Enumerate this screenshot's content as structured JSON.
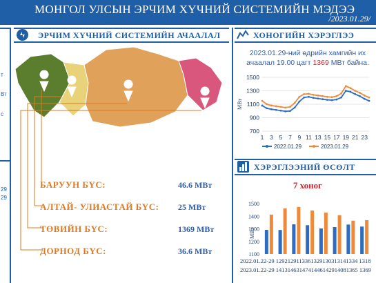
{
  "header": {
    "title": "МОНГОЛ УЛСЫН ЭРЧИМ ХҮЧНИЙ СИСТЕМИЙН МЭДЭЭ",
    "date": "/2023.01.29/"
  },
  "sections": {
    "system_status": "ЭРЧИМ ХҮЧНИЙ СИСТЕМИЙН АЧААЛАЛ",
    "daily_consumption": "ХОНОГИЙН ХЭРЭГЛЭЭ",
    "consumption_growth": "ХЭРЭГЛЭЭНИЙ ӨСӨЛТ"
  },
  "left_fragments": [
    "т",
    "Вт",
    "с",
    "29",
    "29"
  ],
  "regions": [
    {
      "name": "БАРУУН БҮС:",
      "value": "46.6 МВт",
      "color": "#5a7d2e"
    },
    {
      "name": "АЛТАЙ- УЛИАСТАЙ БҮС:",
      "value": "25 МВт",
      "color": "#e8d27a"
    },
    {
      "name": "ТӨВИЙН БҮС:",
      "value": "1369 МВт",
      "color": "#e0a25a"
    },
    {
      "name": "ДОРНОД БҮС:",
      "value": "36.6 МВт",
      "color": "#d9567d"
    }
  ],
  "daily_caption": {
    "line1": "2023.01.29-ний өдрийн хамгийн их",
    "line2_pre": "ачаалал 19.00 цагт ",
    "line2_value": "1369",
    "line2_post": " МВт байна."
  },
  "week_title": "7 хоног",
  "chart_data": [
    {
      "type": "line",
      "ylabel": "МВт",
      "ylim": [
        700,
        1500
      ],
      "yticks": [
        700,
        900,
        1100,
        1300,
        1500
      ],
      "x": [
        1,
        2,
        3,
        4,
        5,
        6,
        7,
        8,
        9,
        10,
        11,
        12,
        13,
        14,
        15,
        16,
        17,
        18,
        19,
        20,
        21,
        22,
        23,
        24
      ],
      "xticks": [
        "1",
        "3",
        "5",
        "7",
        "9",
        "11",
        "13",
        "15",
        "17",
        "19",
        "21",
        "23"
      ],
      "series": [
        {
          "name": "2022.01.29",
          "color": "#2d6cc0",
          "values": [
            1080,
            1040,
            1025,
            1015,
            1005,
            995,
            1000,
            1050,
            1140,
            1200,
            1210,
            1195,
            1185,
            1175,
            1165,
            1160,
            1170,
            1200,
            1300,
            1285,
            1250,
            1220,
            1180,
            1150
          ]
        },
        {
          "name": "2023.01.29",
          "color": "#ee8a3a",
          "values": [
            1150,
            1100,
            1080,
            1070,
            1060,
            1050,
            1060,
            1120,
            1210,
            1250,
            1255,
            1240,
            1230,
            1220,
            1210,
            1205,
            1220,
            1260,
            1369,
            1340,
            1300,
            1270,
            1230,
            1200
          ]
        }
      ]
    },
    {
      "type": "bar",
      "ylabel": "МВт",
      "ylim": [
        1100,
        1550
      ],
      "yticks": [
        1100,
        1200,
        1300,
        1400,
        1500
      ],
      "categories": [
        "01.22",
        "01.23",
        "01.24",
        "01.25",
        "01.26",
        "01.27",
        "01.28",
        "01.29"
      ],
      "series": [
        {
          "name": "2022.01.22-29",
          "color": "#2d6cc0",
          "values": [
            1292,
            1291,
            1336,
            1329,
            1303,
            1314,
            1334,
            1318
          ]
        },
        {
          "name": "2023.01.22-29",
          "color": "#ee8a3a",
          "values": [
            1413,
            1463,
            1474,
            1446,
            1429,
            1408,
            1365,
            1369
          ]
        }
      ]
    }
  ],
  "bottom_rows": [
    {
      "label": "2022.01.22-29",
      "values": "1292129113361329130313141334 1318"
    },
    {
      "label": "2023.01.22-29",
      "values": "1413146314741446142914081365 1369"
    }
  ]
}
